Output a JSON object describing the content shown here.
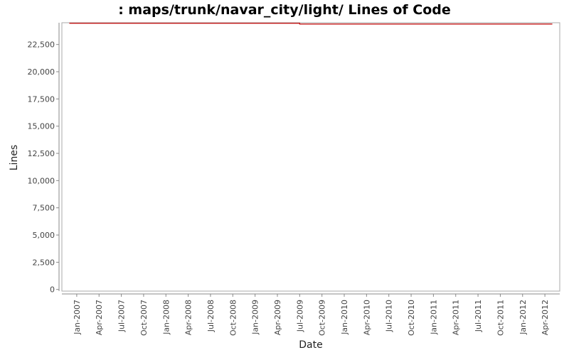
{
  "chart_data": {
    "type": "line",
    "title": ": maps/trunk/navar_city/light/ Lines of Code",
    "x_label": "Date",
    "y_label": "Lines",
    "x": [
      "Dec-2006",
      "Jul-2009",
      "Jul-2009",
      "May-2012"
    ],
    "series": [
      {
        "name": "Lines",
        "color": "#c00000",
        "values": [
          24450,
          24450,
          24380,
          24380
        ]
      }
    ],
    "xlim": [
      "Nov-2006",
      "Jun-2012"
    ],
    "xticks": [
      "Jan-2007",
      "Apr-2007",
      "Jul-2007",
      "Oct-2007",
      "Jan-2008",
      "Apr-2008",
      "Jul-2008",
      "Oct-2008",
      "Jan-2009",
      "Apr-2009",
      "Jul-2009",
      "Oct-2009",
      "Jan-2010",
      "Apr-2010",
      "Jul-2010",
      "Oct-2010",
      "Jan-2011",
      "Apr-2011",
      "Jul-2011",
      "Oct-2011",
      "Jan-2012",
      "Apr-2012"
    ],
    "ylim": [
      -150,
      24500
    ],
    "yticks": [
      0,
      {
        "value": 2500,
        "label": "2,500"
      },
      {
        "value": 5000,
        "label": "5,000"
      },
      {
        "value": 7500,
        "label": "7,500"
      },
      {
        "value": 10000,
        "label": "10,000"
      },
      {
        "value": 12500,
        "label": "12,500"
      },
      {
        "value": 15000,
        "label": "15,000"
      },
      {
        "value": 17500,
        "label": "17,500"
      },
      {
        "value": 20000,
        "label": "20,000"
      },
      {
        "value": 22500,
        "label": "22,500"
      }
    ]
  }
}
